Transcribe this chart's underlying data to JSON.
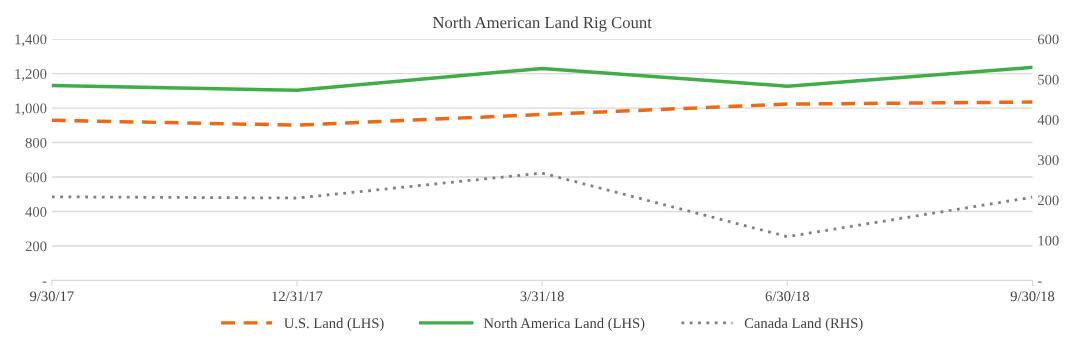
{
  "chart_data": {
    "type": "line",
    "title": "North American Land Rig Count",
    "categories": [
      "9/30/17",
      "12/31/17",
      "3/31/18",
      "6/30/18",
      "9/30/18"
    ],
    "series": [
      {
        "name": "U.S. Land (LHS)",
        "color": "#ed6a12",
        "values": [
          929,
          901,
          963,
          1023,
          1035
        ],
        "line_style": "dashed"
      },
      {
        "name": "North America Land (LHS)",
        "color": "#3fae49",
        "values": [
          1131,
          1103,
          1230,
          1127,
          1236
        ],
        "line_style": "solid"
      },
      {
        "name": "Canada Land (RHS)",
        "color": "#7f7f7f",
        "values": [
          208,
          205,
          267,
          109,
          207
        ],
        "line_style": "dotted",
        "axis": "y2"
      }
    ],
    "ylim": [
      0,
      1400
    ],
    "yticks": [
      {
        "value": 0,
        "label": "-"
      },
      200,
      400,
      600,
      800,
      {
        "value": 1000,
        "label": "1,000"
      },
      {
        "value": 1200,
        "label": "1,200"
      },
      {
        "value": 1400,
        "label": "1,400"
      }
    ],
    "y2lim": [
      0,
      600
    ],
    "y2ticks": [
      {
        "value": 0,
        "label": "-"
      },
      100,
      200,
      300,
      400,
      500,
      600
    ],
    "grid": "y",
    "legend": "bottom",
    "marker": "none"
  }
}
